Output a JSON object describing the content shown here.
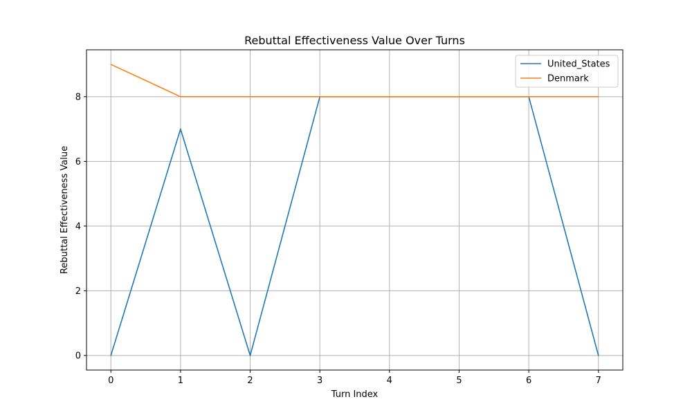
{
  "chart_data": {
    "type": "line",
    "title": "Rebuttal Effectiveness Value Over Turns",
    "xlabel": "Turn Index",
    "ylabel": "Rebuttal Effectiveness Value",
    "x": [
      0,
      1,
      2,
      3,
      4,
      5,
      6,
      7
    ],
    "series": [
      {
        "name": "United_States",
        "color": "#1f77b4",
        "values": [
          0,
          7,
          0,
          8,
          8,
          8,
          8,
          0
        ]
      },
      {
        "name": "Denmark",
        "color": "#ff7f0e",
        "values": [
          9,
          8,
          8,
          8,
          8,
          8,
          8,
          8
        ]
      }
    ],
    "xlim": [
      -0.35,
      7.35
    ],
    "ylim": [
      -0.45,
      9.45
    ],
    "xticks": [
      0,
      1,
      2,
      3,
      4,
      5,
      6,
      7
    ],
    "yticks": [
      0,
      2,
      4,
      6,
      8
    ],
    "grid": true,
    "legend_position": "top-right"
  }
}
